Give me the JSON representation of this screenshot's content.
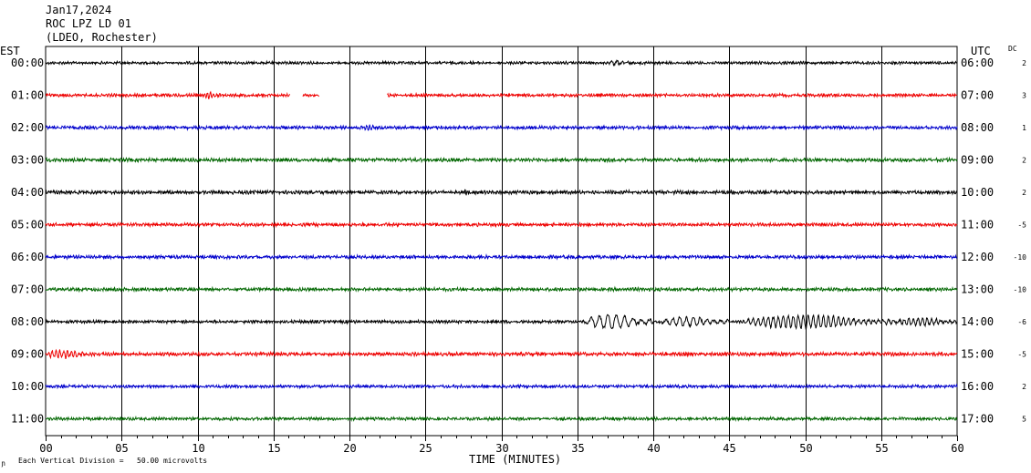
{
  "header": {
    "date": "Jan17,2024",
    "station": "ROC LPZ LD 01",
    "network": "(LDEO, Rochester)"
  },
  "left_axis_title": "EST",
  "right_axis_title": "UTC",
  "dc_title": "DC",
  "footer": {
    "legend_symbol": "ɲ",
    "division_note": "Each Vertical Division =   50.00 microvolts"
  },
  "colors": {
    "cycle": [
      "#000000",
      "#ee0000",
      "#0000cc",
      "#006600"
    ],
    "grid": "#000000"
  },
  "chart_data": {
    "type": "line",
    "title": "",
    "xlabel": "TIME (MINUTES)",
    "ylabel": "",
    "xlim": [
      0,
      60
    ],
    "x_ticks": [
      "00",
      "05",
      "10",
      "15",
      "20",
      "25",
      "30",
      "35",
      "40",
      "45",
      "50",
      "55",
      "60"
    ],
    "grid": "vertical every 5 minutes",
    "rows": [
      {
        "est": "00:00",
        "utc": "06:00",
        "dc": "2",
        "color": "#000000",
        "noise": 1.0,
        "gaps": [],
        "events": [
          {
            "start": 37,
            "end": 38.5,
            "amp": 2.2,
            "period": 0.35
          }
        ]
      },
      {
        "est": "01:00",
        "utc": "07:00",
        "dc": "3",
        "color": "#ee0000",
        "noise": 1.1,
        "gaps": [
          [
            16.1,
            16.9
          ],
          [
            18.0,
            22.5
          ]
        ],
        "events": [
          {
            "start": 10.5,
            "end": 11.5,
            "amp": 3.2,
            "period": 0.2
          }
        ]
      },
      {
        "est": "02:00",
        "utc": "08:00",
        "dc": "1",
        "color": "#0000cc",
        "noise": 1.2,
        "gaps": [],
        "events": [
          {
            "start": 21,
            "end": 22,
            "amp": 2.6,
            "period": 0.2
          }
        ]
      },
      {
        "est": "03:00",
        "utc": "09:00",
        "dc": "2",
        "color": "#006600",
        "noise": 1.3,
        "gaps": [],
        "events": []
      },
      {
        "est": "04:00",
        "utc": "10:00",
        "dc": "2",
        "color": "#000000",
        "noise": 1.3,
        "gaps": [],
        "events": [
          {
            "start": 27.5,
            "end": 28,
            "amp": 3.0,
            "period": 0.15
          },
          {
            "start": 45,
            "end": 45.5,
            "amp": 3.0,
            "period": 0.15
          }
        ]
      },
      {
        "est": "05:00",
        "utc": "11:00",
        "dc": "-5",
        "color": "#ee0000",
        "noise": 1.2,
        "gaps": [],
        "events": []
      },
      {
        "est": "06:00",
        "utc": "12:00",
        "dc": "-10",
        "color": "#0000cc",
        "noise": 1.2,
        "gaps": [],
        "events": []
      },
      {
        "est": "07:00",
        "utc": "13:00",
        "dc": "-10",
        "color": "#006600",
        "noise": 1.2,
        "gaps": [],
        "events": []
      },
      {
        "est": "08:00",
        "utc": "14:00",
        "dc": "-6",
        "color": "#000000",
        "noise": 1.1,
        "gaps": [],
        "events": [
          {
            "start": 35.5,
            "end": 40,
            "amp": 7.5,
            "period": 0.55
          },
          {
            "start": 40.5,
            "end": 45,
            "amp": 5.0,
            "period": 0.45
          },
          {
            "start": 46,
            "end": 56,
            "amp": 7.0,
            "period": 0.33
          },
          {
            "start": 56,
            "end": 60,
            "amp": 4.0,
            "period": 0.3
          }
        ]
      },
      {
        "est": "09:00",
        "utc": "15:00",
        "dc": "-5",
        "color": "#ee0000",
        "noise": 1.3,
        "gaps": [],
        "events": [
          {
            "start": 0,
            "end": 3,
            "amp": 4.0,
            "period": 0.25
          }
        ]
      },
      {
        "est": "10:00",
        "utc": "16:00",
        "dc": "2",
        "color": "#0000cc",
        "noise": 1.1,
        "gaps": [],
        "events": []
      },
      {
        "est": "11:00",
        "utc": "17:00",
        "dc": "5",
        "color": "#006600",
        "noise": 1.1,
        "gaps": [],
        "events": []
      }
    ]
  }
}
